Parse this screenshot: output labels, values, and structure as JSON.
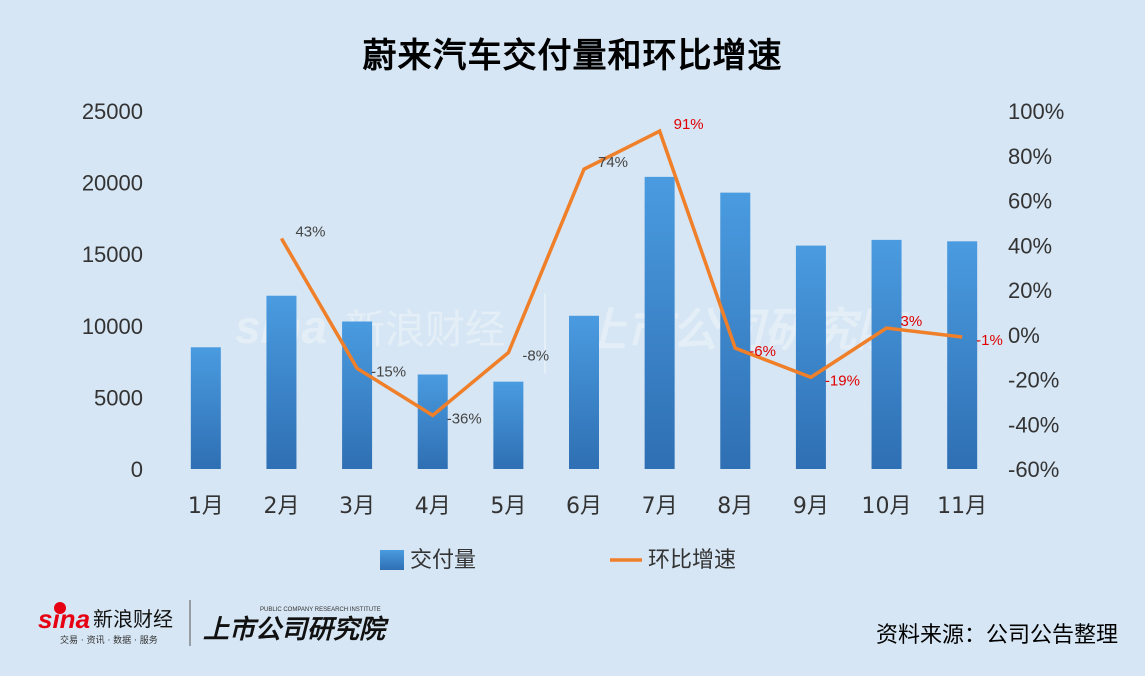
{
  "title": "蔚来汽车交付量和环比增速",
  "source": "资料来源：公司公告整理",
  "logo": {
    "sina_text": "sina",
    "brand": "新浪财经",
    "brand_sub": "交易 · 资讯 · 数据 · 服务",
    "institute": "上市公司研究院",
    "institute_en": "PUBLIC COMPANY RESEARCH INSTITUTE"
  },
  "colors": {
    "background": "#d6e6f4",
    "bar": "#3a86cc",
    "line": "#f07f2a",
    "label_positive": "#444444",
    "label_red": "#e00000"
  },
  "chart_data": {
    "type": "bar",
    "title": "蔚来汽车交付量和环比增速",
    "categories": [
      "1月",
      "2月",
      "3月",
      "4月",
      "5月",
      "6月",
      "7月",
      "8月",
      "9月",
      "10月",
      "11月"
    ],
    "series": [
      {
        "name": "交付量",
        "type": "bar",
        "axis": "left",
        "values": [
          8500,
          12100,
          10300,
          6600,
          6100,
          10700,
          20400,
          19300,
          15600,
          16000,
          15900
        ]
      },
      {
        "name": "环比增速",
        "type": "line",
        "axis": "right",
        "values": [
          null,
          43,
          -15,
          -36,
          -8,
          74,
          91,
          -6,
          -19,
          3,
          -1
        ],
        "labels": [
          "",
          "43%",
          "-15%",
          "-36%",
          "-8%",
          "74%",
          "91%",
          "-6%",
          "-19%",
          "3%",
          "-1%"
        ],
        "label_colors": [
          "",
          "dark",
          "dark",
          "dark",
          "dark",
          "dark",
          "red",
          "red",
          "red",
          "red",
          "red"
        ]
      }
    ],
    "y_left": {
      "min": 0,
      "max": 25000,
      "ticks": [
        "0",
        "5000",
        "10000",
        "15000",
        "20000",
        "25000"
      ]
    },
    "y_right": {
      "min": -60,
      "max": 100,
      "ticks": [
        "-60%",
        "-40%",
        "-20%",
        "0%",
        "20%",
        "40%",
        "60%",
        "80%",
        "100%"
      ]
    },
    "legend": {
      "position": "bottom",
      "items": [
        "交付量",
        "环比增速"
      ]
    },
    "grid": false
  }
}
